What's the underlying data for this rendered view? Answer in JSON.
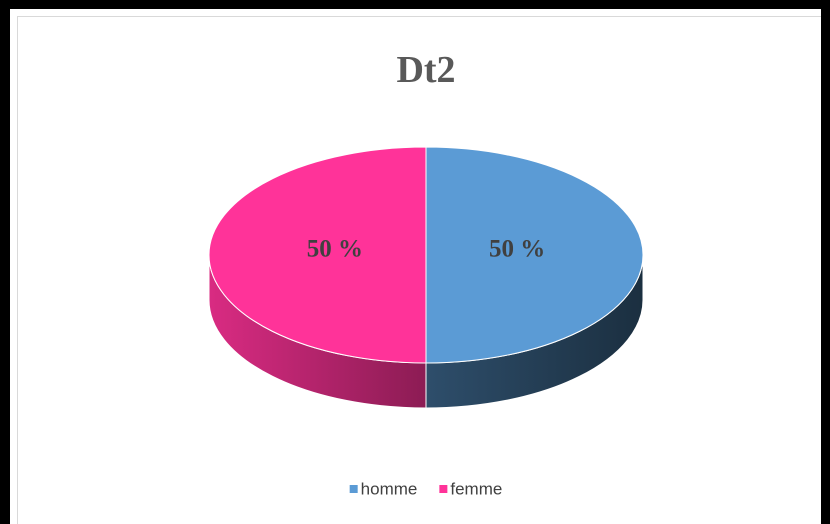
{
  "chart_data": {
    "type": "pie",
    "title": "Dt2",
    "categories": [
      "homme",
      "femme"
    ],
    "values": [
      50,
      50
    ],
    "value_labels": [
      "50 %",
      "50 %"
    ],
    "colors": [
      "#5b9bd5",
      "#ff3399"
    ],
    "legend": "bottom"
  }
}
